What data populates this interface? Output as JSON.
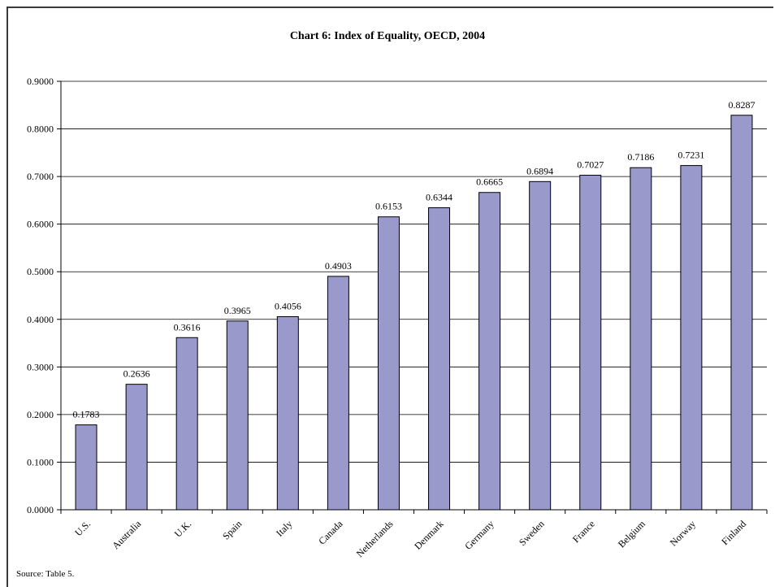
{
  "chart_data": {
    "type": "bar",
    "title": "Chart 6: Index of Equality, OECD, 2004",
    "xlabel": "",
    "ylabel": "",
    "categories": [
      "U.S.",
      "Australia",
      "U.K.",
      "Spain",
      "Italy",
      "Canada",
      "Netherlands",
      "Denmark",
      "Germany",
      "Sweden",
      "France",
      "Belgium",
      "Norway",
      "Finland"
    ],
    "values": [
      0.1783,
      0.2636,
      0.3616,
      0.3965,
      0.4056,
      0.4903,
      0.6153,
      0.6344,
      0.6665,
      0.6894,
      0.7027,
      0.7186,
      0.7231,
      0.8287
    ],
    "value_labels": [
      "0.1783",
      "0.2636",
      "0.3616",
      "0.3965",
      "0.4056",
      "0.4903",
      "0.6153",
      "0.6344",
      "0.6665",
      "0.6894",
      "0.7027",
      "0.7186",
      "0.7231",
      "0.8287"
    ],
    "ylim": [
      0,
      0.9
    ],
    "yticks": [
      0,
      0.1,
      0.2,
      0.3,
      0.4,
      0.5,
      0.6,
      0.7,
      0.8,
      0.9
    ],
    "ytick_labels": [
      "0.0000",
      "0.1000",
      "0.2000",
      "0.3000",
      "0.4000",
      "0.5000",
      "0.6000",
      "0.7000",
      "0.8000",
      "0.9000"
    ],
    "grid": true,
    "legend": "none",
    "bar_color": "#9999cc"
  },
  "source": "Source: Table 5."
}
